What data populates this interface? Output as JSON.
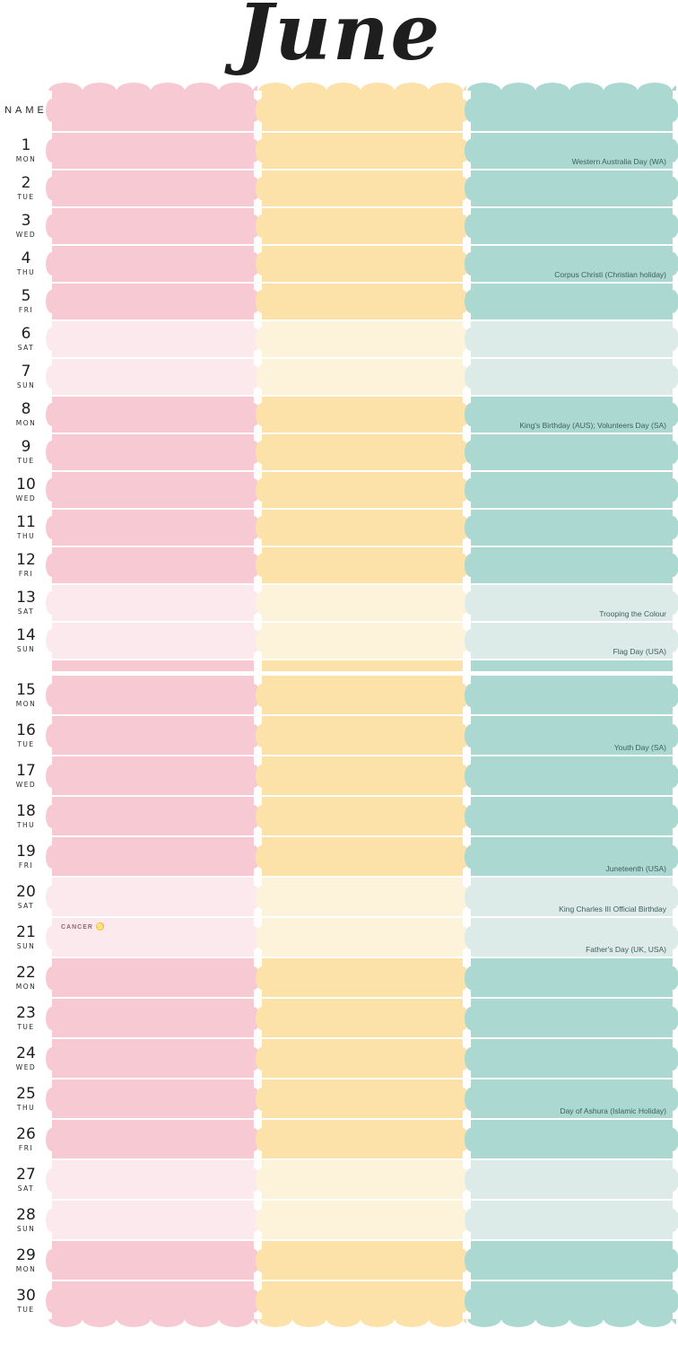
{
  "title": "June",
  "name_header": "NAME",
  "colors": {
    "pink": "#f7c9d3",
    "pink_light": "#fce9ee",
    "yellow": "#fce1a9",
    "yellow_light": "#fdf3da",
    "teal": "#abd8d1",
    "teal_light": "#dcebe8",
    "holiday_text": "#40605b",
    "title_color": "#1e1e1e"
  },
  "columns": [
    {
      "id": "pink"
    },
    {
      "id": "yellow"
    },
    {
      "id": "teal"
    }
  ],
  "zodiac": {
    "day": "21",
    "label": "CANCER",
    "symbol": "♋"
  },
  "days": [
    {
      "num": "1",
      "dow": "MON",
      "weekend": false,
      "holiday": "Western Australia Day (WA)"
    },
    {
      "num": "2",
      "dow": "TUE",
      "weekend": false,
      "holiday": ""
    },
    {
      "num": "3",
      "dow": "WED",
      "weekend": false,
      "holiday": ""
    },
    {
      "num": "4",
      "dow": "THU",
      "weekend": false,
      "holiday": "Corpus Christi (Christian holiday)"
    },
    {
      "num": "5",
      "dow": "FRI",
      "weekend": false,
      "holiday": ""
    },
    {
      "num": "6",
      "dow": "SAT",
      "weekend": true,
      "holiday": ""
    },
    {
      "num": "7",
      "dow": "SUN",
      "weekend": true,
      "holiday": ""
    },
    {
      "num": "8",
      "dow": "MON",
      "weekend": false,
      "holiday": "King's Birthday (AUS); Volunteers Day (SA)"
    },
    {
      "num": "9",
      "dow": "TUE",
      "weekend": false,
      "holiday": ""
    },
    {
      "num": "10",
      "dow": "WED",
      "weekend": false,
      "holiday": ""
    },
    {
      "num": "11",
      "dow": "THU",
      "weekend": false,
      "holiday": ""
    },
    {
      "num": "12",
      "dow": "FRI",
      "weekend": false,
      "holiday": ""
    },
    {
      "num": "13",
      "dow": "SAT",
      "weekend": true,
      "holiday": "Trooping the Colour"
    },
    {
      "num": "14",
      "dow": "SUN",
      "weekend": true,
      "holiday": "Flag Day (USA)"
    },
    {
      "num": "15",
      "dow": "MON",
      "weekend": false,
      "holiday": ""
    },
    {
      "num": "16",
      "dow": "TUE",
      "weekend": false,
      "holiday": "Youth Day (SA)"
    },
    {
      "num": "17",
      "dow": "WED",
      "weekend": false,
      "holiday": ""
    },
    {
      "num": "18",
      "dow": "THU",
      "weekend": false,
      "holiday": ""
    },
    {
      "num": "19",
      "dow": "FRI",
      "weekend": false,
      "holiday": "Juneteenth (USA)"
    },
    {
      "num": "20",
      "dow": "SAT",
      "weekend": true,
      "holiday": "King Charles III Official Birthday"
    },
    {
      "num": "21",
      "dow": "SUN",
      "weekend": true,
      "holiday": "Father's Day (UK, USA)"
    },
    {
      "num": "22",
      "dow": "MON",
      "weekend": false,
      "holiday": ""
    },
    {
      "num": "23",
      "dow": "TUE",
      "weekend": false,
      "holiday": ""
    },
    {
      "num": "24",
      "dow": "WED",
      "weekend": false,
      "holiday": ""
    },
    {
      "num": "25",
      "dow": "THU",
      "weekend": false,
      "holiday": "Day of Ashura (Islamic Holiday)"
    },
    {
      "num": "26",
      "dow": "FRI",
      "weekend": false,
      "holiday": ""
    },
    {
      "num": "27",
      "dow": "SAT",
      "weekend": true,
      "holiday": ""
    },
    {
      "num": "28",
      "dow": "SUN",
      "weekend": true,
      "holiday": ""
    },
    {
      "num": "29",
      "dow": "MON",
      "weekend": false,
      "holiday": ""
    },
    {
      "num": "30",
      "dow": "TUE",
      "weekend": false,
      "holiday": ""
    }
  ]
}
